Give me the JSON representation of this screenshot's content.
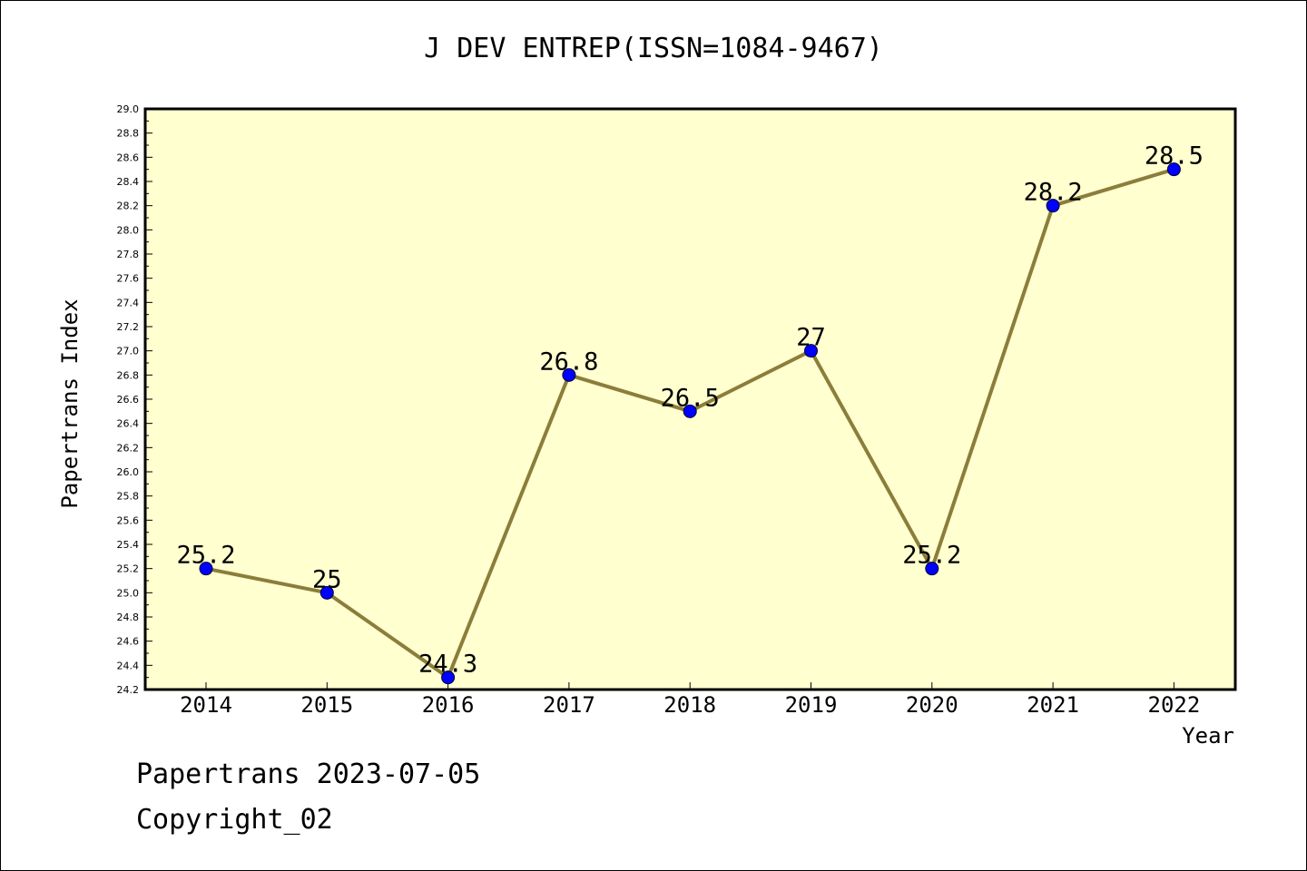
{
  "chart_data": {
    "type": "line",
    "title": "J DEV ENTREP(ISSN=1084-9467)",
    "xlabel": "Year",
    "ylabel": "Papertrans Index",
    "categories": [
      "2014",
      "2015",
      "2016",
      "2017",
      "2018",
      "2019",
      "2020",
      "2021",
      "2022"
    ],
    "series": [
      {
        "values": [
          25.2,
          25.0,
          24.3,
          26.8,
          26.5,
          27.0,
          25.2,
          28.2,
          28.5
        ],
        "labels": [
          "25.2",
          "25",
          "24.3",
          "26.8",
          "26.5",
          "27",
          "25.2",
          "28.2",
          "28.5"
        ]
      }
    ],
    "ylim": [
      24.2,
      29.0
    ],
    "y_ticks": [
      "24.2",
      "24.4",
      "24.6",
      "24.8",
      "25.0",
      "25.2",
      "25.4",
      "25.6",
      "25.8",
      "26.0",
      "26.2",
      "26.4",
      "26.6",
      "26.8",
      "27.0",
      "27.2",
      "27.4",
      "27.6",
      "27.8",
      "28.0",
      "28.2",
      "28.4",
      "28.6",
      "28.8",
      "29.0"
    ],
    "grid": false,
    "colors": {
      "plot_background": "#ffffd0",
      "line": "#8b7d3a",
      "marker": "#0000ff"
    }
  },
  "footer": {
    "line1": "Papertrans 2023-07-05",
    "line2": "Copyright_02"
  }
}
